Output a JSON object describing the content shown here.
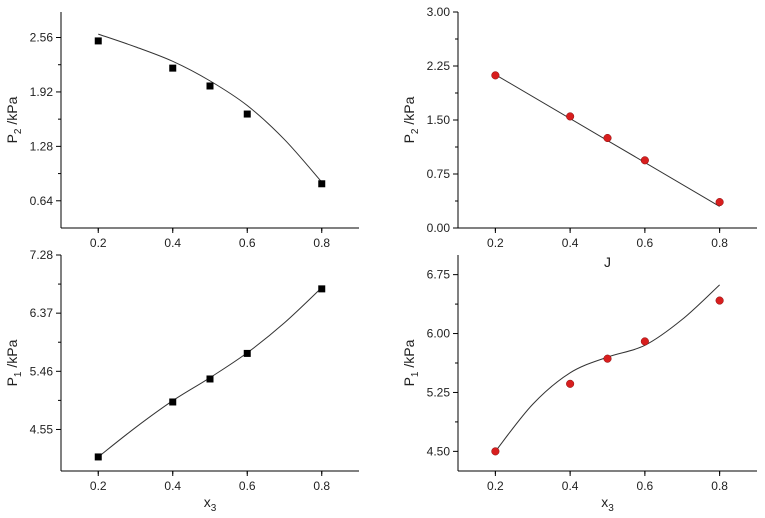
{
  "chart_data": [
    {
      "type": "scatter",
      "xlabel": "",
      "ylabel": "P_2 /kPa",
      "ylabel_main": "P",
      "ylabel_sub": "2",
      "ylabel_tail": " /kPa",
      "xlim": [
        0.1,
        0.9
      ],
      "ylim": [
        0.32,
        2.86
      ],
      "xticks": [
        0.2,
        0.4,
        0.6,
        0.8
      ],
      "xtick_labels": [
        "0.2",
        "0.4",
        "0.6",
        "0.8"
      ],
      "yticks": [
        0.64,
        1.28,
        1.92,
        2.56
      ],
      "ytick_labels": [
        "0.64",
        "1.28",
        "1.92",
        "2.56"
      ],
      "marker": "square",
      "color": "#000000",
      "points": {
        "x": [
          0.2,
          0.4,
          0.5,
          0.6,
          0.8
        ],
        "y": [
          2.52,
          2.2,
          1.99,
          1.66,
          0.84
        ]
      },
      "fit": {
        "x": [
          0.2,
          0.3,
          0.4,
          0.5,
          0.6,
          0.7,
          0.8
        ],
        "y": [
          2.6,
          2.45,
          2.28,
          2.05,
          1.76,
          1.36,
          0.86
        ]
      }
    },
    {
      "type": "scatter",
      "xlabel": "J",
      "ylabel": "P_2 /kPa",
      "ylabel_main": "P",
      "ylabel_sub": "2",
      "ylabel_tail": " /kPa",
      "xlim": [
        0.1,
        0.9
      ],
      "ylim": [
        0.0,
        3.0
      ],
      "xticks": [
        0.2,
        0.4,
        0.6,
        0.8
      ],
      "xtick_labels": [
        "0.2",
        "0.4",
        "0.6",
        "0.8"
      ],
      "yticks": [
        0.0,
        0.75,
        1.5,
        2.25,
        3.0
      ],
      "ytick_labels": [
        "0.00",
        "0.75",
        "1.50",
        "2.25",
        "3.00"
      ],
      "marker": "circle",
      "color": "#d81e1e",
      "points": {
        "x": [
          0.2,
          0.4,
          0.5,
          0.6,
          0.8
        ],
        "y": [
          2.12,
          1.55,
          1.25,
          0.94,
          0.36
        ]
      },
      "fit": {
        "x": [
          0.2,
          0.8
        ],
        "y": [
          2.13,
          0.3
        ]
      }
    },
    {
      "type": "scatter",
      "xlabel": "x_3",
      "xlabel_main": "x",
      "xlabel_sub": "3",
      "ylabel": "P_1 /kPa",
      "ylabel_main": "P",
      "ylabel_sub": "1",
      "ylabel_tail": " /kPa",
      "xlim": [
        0.1,
        0.9
      ],
      "ylim": [
        3.9,
        7.28
      ],
      "xticks": [
        0.2,
        0.4,
        0.6,
        0.8
      ],
      "xtick_labels": [
        "0.2",
        "0.4",
        "0.6",
        "0.8"
      ],
      "yticks": [
        4.55,
        5.46,
        6.37,
        7.28
      ],
      "ytick_labels": [
        "4.55",
        "5.46",
        "6.37",
        "7.28"
      ],
      "marker": "square",
      "color": "#000000",
      "points": {
        "x": [
          0.2,
          0.4,
          0.5,
          0.6,
          0.8
        ],
        "y": [
          4.12,
          4.98,
          5.34,
          5.74,
          6.75
        ]
      },
      "fit": {
        "x": [
          0.2,
          0.3,
          0.4,
          0.5,
          0.6,
          0.7,
          0.8
        ],
        "y": [
          4.12,
          4.58,
          5.0,
          5.36,
          5.75,
          6.22,
          6.77
        ]
      }
    },
    {
      "type": "scatter",
      "xlabel": "x_3",
      "xlabel_main": "x",
      "xlabel_sub": "3",
      "ylabel": "P_1 /kPa",
      "ylabel_main": "P",
      "ylabel_sub": "1",
      "ylabel_tail": " /kPa",
      "xlim": [
        0.1,
        0.9
      ],
      "ylim": [
        4.25,
        7.0
      ],
      "xticks": [
        0.2,
        0.4,
        0.6,
        0.8
      ],
      "xtick_labels": [
        "0.2",
        "0.4",
        "0.6",
        "0.8"
      ],
      "yticks": [
        4.5,
        5.25,
        6.0,
        6.75
      ],
      "ytick_labels": [
        "4.50",
        "5.25",
        "6.00",
        "6.75"
      ],
      "marker": "circle",
      "color": "#d81e1e",
      "points": {
        "x": [
          0.2,
          0.4,
          0.5,
          0.6,
          0.8
        ],
        "y": [
          4.5,
          5.36,
          5.68,
          5.9,
          6.42
        ]
      },
      "fit": {
        "x": [
          0.2,
          0.3,
          0.4,
          0.5,
          0.6,
          0.7,
          0.8
        ],
        "y": [
          4.5,
          5.1,
          5.5,
          5.7,
          5.85,
          6.18,
          6.62
        ]
      }
    }
  ]
}
